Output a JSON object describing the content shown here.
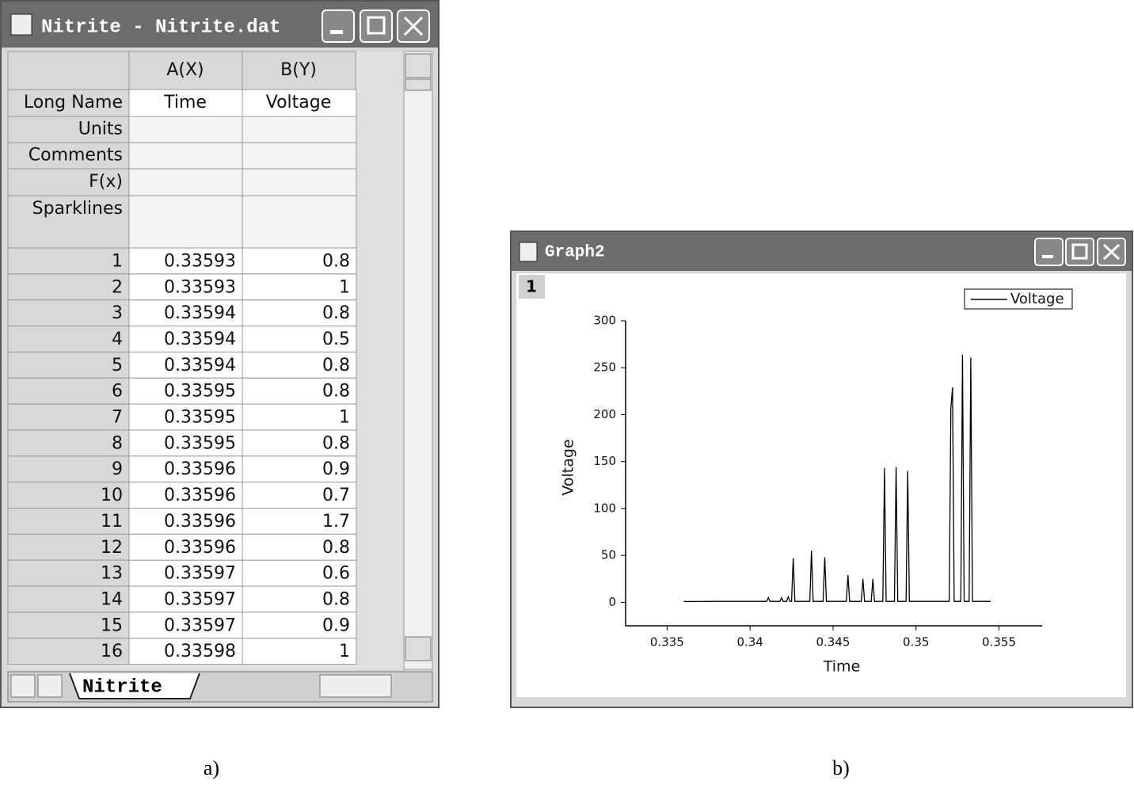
{
  "worksheet": {
    "title": "Nitrite - Nitrite.dat",
    "columns": [
      "A(X)",
      "B(Y)"
    ],
    "row_labels": [
      "Long Name",
      "Units",
      "Comments",
      "F(x)",
      "Sparklines"
    ],
    "long_names": [
      "Time",
      "Voltage"
    ],
    "rows": [
      [
        1,
        0.33593,
        0.8
      ],
      [
        2,
        0.33593,
        1
      ],
      [
        3,
        0.33594,
        0.8
      ],
      [
        4,
        0.33594,
        0.5
      ],
      [
        5,
        0.33594,
        0.8
      ],
      [
        6,
        0.33595,
        0.8
      ],
      [
        7,
        0.33595,
        1
      ],
      [
        8,
        0.33595,
        0.8
      ],
      [
        9,
        0.33596,
        0.9
      ],
      [
        10,
        0.33596,
        0.7
      ],
      [
        11,
        0.33596,
        1.7
      ],
      [
        12,
        0.33596,
        0.8
      ],
      [
        13,
        0.33597,
        0.6
      ],
      [
        14,
        0.33597,
        0.8
      ],
      [
        15,
        0.33597,
        0.9
      ],
      [
        16,
        0.33598,
        1
      ]
    ],
    "sheet_tab": "Nitrite"
  },
  "graph_window": {
    "title": "Graph2",
    "layer": "1"
  },
  "captions": [
    "a)",
    "b)"
  ],
  "chart_data": {
    "type": "line",
    "xlabel": "Time",
    "ylabel": "Voltage",
    "x": [
      0.336,
      0.338,
      0.34,
      0.341,
      0.3411,
      0.3412,
      0.3418,
      0.3419,
      0.342,
      0.3422,
      0.3423,
      0.3424,
      0.3425,
      0.3426,
      0.3427,
      0.3436,
      0.3437,
      0.3438,
      0.3444,
      0.3445,
      0.3446,
      0.3458,
      0.3459,
      0.346,
      0.3467,
      0.3468,
      0.3469,
      0.3473,
      0.3474,
      0.3475,
      0.348,
      0.3481,
      0.3482,
      0.3487,
      0.3488,
      0.3489,
      0.3494,
      0.3495,
      0.3496,
      0.352,
      0.3521,
      0.3522,
      0.3523,
      0.3527,
      0.3528,
      0.3529,
      0.3532,
      0.3533,
      0.3534,
      0.3545
    ],
    "series": [
      {
        "name": "Voltage",
        "color": "#000000",
        "values": [
          0.8,
          1,
          1,
          1,
          5,
          1,
          1,
          5,
          1,
          1,
          6,
          1,
          1,
          47,
          1,
          1,
          55,
          1,
          1,
          48,
          1,
          1,
          29,
          1,
          1,
          25,
          1,
          1,
          25,
          1,
          1,
          143,
          1,
          1,
          144,
          1,
          1,
          140,
          1,
          1,
          207,
          229,
          1,
          1,
          264,
          1,
          1,
          261,
          1,
          1
        ]
      }
    ],
    "xlim": [
      0.3325,
      0.3576
    ],
    "xticks": [
      0.335,
      0.34,
      0.345,
      0.35,
      0.355
    ],
    "ylim": [
      -25,
      300
    ],
    "yticks": [
      0,
      50,
      100,
      150,
      200,
      250,
      300
    ],
    "legend": "upper right"
  }
}
